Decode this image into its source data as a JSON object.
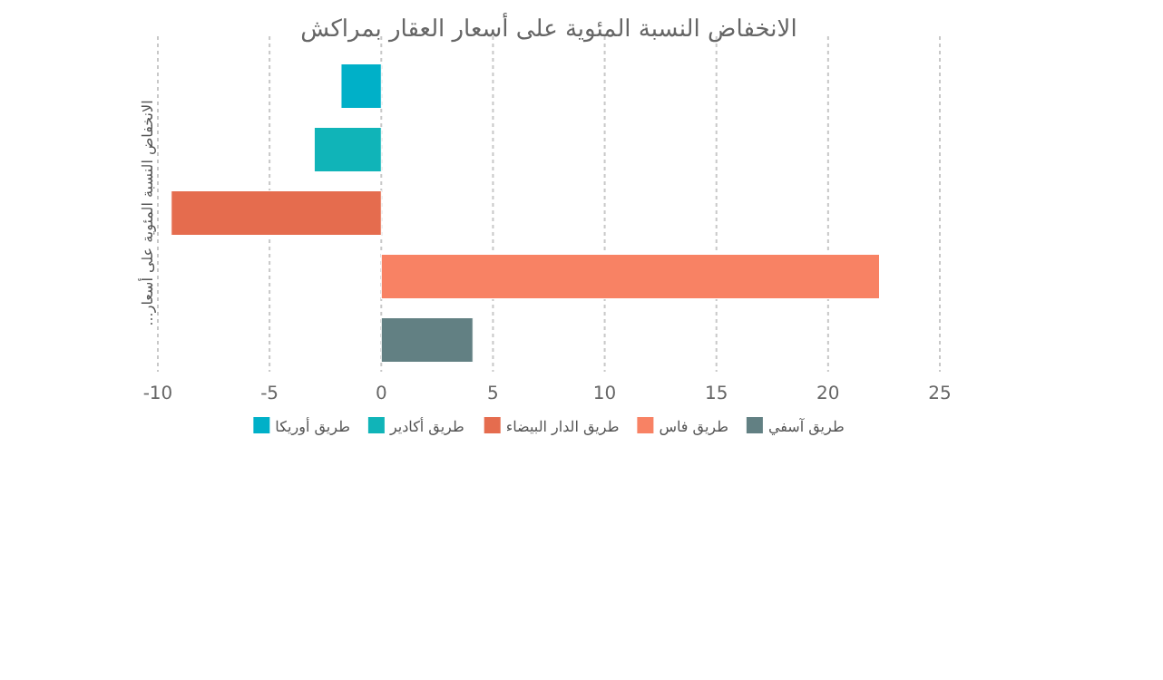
{
  "chart_data": {
    "type": "bar",
    "orientation": "horizontal",
    "title": "الانخفاض النسبة المئوية على أسعار العقار بمراكش",
    "ylabel": "الانخفاض النسبة المئوية على أسعار...",
    "categories": [
      null
    ],
    "series": [
      {
        "name": "طريق أوريكا",
        "color": "#00b0c8",
        "values": [
          -1.8
        ]
      },
      {
        "name": "طريق أكادير",
        "color": "#10b4b8",
        "values": [
          -3.0
        ]
      },
      {
        "name": "طريق الدار البيضاء",
        "color": "#e56c4e",
        "values": [
          -9.4
        ]
      },
      {
        "name": "طريق فاس",
        "color": "#f88264",
        "values": [
          22.3
        ]
      },
      {
        "name": "طريق آسفي",
        "color": "#628083",
        "values": [
          4.1
        ]
      }
    ],
    "xlim": [
      -10,
      25
    ],
    "xticks": [
      -10,
      -5,
      0,
      5,
      10,
      15,
      20,
      25
    ],
    "grid": "x",
    "legend": "bottom"
  }
}
